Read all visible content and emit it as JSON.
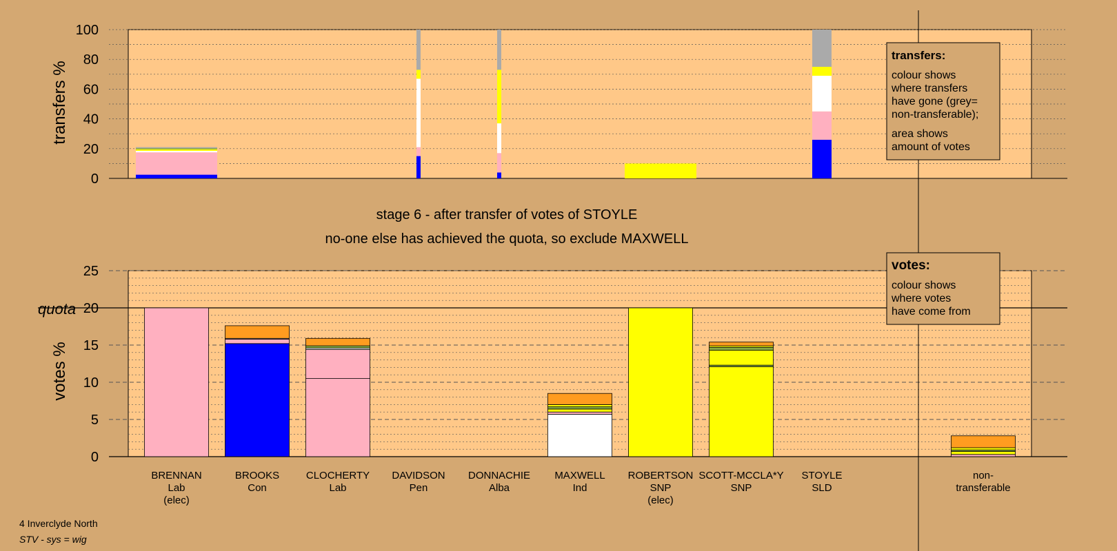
{
  "footer": {
    "line1": "4 Inverclyde North",
    "line2": "STV - sys = wig"
  },
  "stage_title": "stage 6 - after transfer of votes of STOYLE",
  "stage_note": "no-one else has achieved the quota, so exclude MAXWELL",
  "colors": {
    "Lab": "#ffb0c0",
    "Con": "#0000ff",
    "SNP": "#ffff00",
    "Ind": "#ffffff",
    "Orange": "#ff9c20",
    "Green": "#88aa44",
    "Grey": "#aaaaaa",
    "Plot": "#ffc888",
    "Background": "#d4a872"
  },
  "chart_data": [
    {
      "id": "transfers",
      "type": "bar",
      "ylabel": "transfers %",
      "ylim": [
        0,
        100
      ],
      "yticks": [
        0,
        20,
        40,
        60,
        80,
        100
      ],
      "legend": {
        "title": "transfers:",
        "lines": [
          "colour shows",
          "where transfers",
          "have gone (grey=",
          "non-transferable);",
          "area shows",
          "amount of votes"
        ]
      },
      "bars": [
        {
          "candidate": "BRENNAN",
          "segments": [
            {
              "party": "Con",
              "value": 2.5
            },
            {
              "party": "Lab",
              "value": 15
            },
            {
              "party": "Ind",
              "value": 1
            },
            {
              "party": "SNP",
              "value": 1
            },
            {
              "party": "Green",
              "value": 0.8
            },
            {
              "party": "Grey",
              "value": 0.7
            }
          ]
        },
        {
          "candidate": "DAVIDSON",
          "segments": [
            {
              "party": "Con",
              "value": 15
            },
            {
              "party": "Lab",
              "value": 6
            },
            {
              "party": "Ind",
              "value": 46
            },
            {
              "party": "SNP",
              "value": 6
            },
            {
              "party": "Grey",
              "value": 27
            }
          ]
        },
        {
          "candidate": "DONNACHIE",
          "segments": [
            {
              "party": "Con",
              "value": 4
            },
            {
              "party": "Lab",
              "value": 13
            },
            {
              "party": "Ind",
              "value": 20
            },
            {
              "party": "SNP",
              "value": 36
            },
            {
              "party": "Grey",
              "value": 27
            }
          ]
        },
        {
          "candidate": "ROBERTSON",
          "segments": [
            {
              "party": "SNP",
              "value": 10
            }
          ]
        },
        {
          "candidate": "STOYLE",
          "segments": [
            {
              "party": "Con",
              "value": 26
            },
            {
              "party": "Lab",
              "value": 19
            },
            {
              "party": "Ind",
              "value": 24
            },
            {
              "party": "SNP",
              "value": 6
            },
            {
              "party": "Grey",
              "value": 25
            }
          ]
        }
      ]
    },
    {
      "id": "votes",
      "type": "bar",
      "ylabel": "votes %",
      "ylim": [
        0,
        25
      ],
      "yticks": [
        0,
        5,
        10,
        15,
        20,
        25
      ],
      "quota": 20,
      "quota_label": "quota",
      "legend": {
        "title": "votes:",
        "lines": [
          "colour shows",
          "where votes",
          "have come from"
        ]
      },
      "categories": [
        {
          "name": "BRENNAN",
          "party": "Lab",
          "note": "(elec)"
        },
        {
          "name": "BROOKS",
          "party": "Con"
        },
        {
          "name": "CLOCHERTY",
          "party": "Lab"
        },
        {
          "name": "DAVIDSON",
          "party": "Pen"
        },
        {
          "name": "DONNACHIE",
          "party": "Alba"
        },
        {
          "name": "MAXWELL",
          "party": "Ind"
        },
        {
          "name": "ROBERTSON",
          "party": "SNP",
          "note": "(elec)"
        },
        {
          "name": "SCOTT-MCCLA*Y",
          "party": "SNP"
        },
        {
          "name": "STOYLE",
          "party": "SLD"
        },
        {
          "name": "non-",
          "party": "transferable"
        }
      ],
      "bars": [
        {
          "candidate": "BRENNAN",
          "segments": [
            {
              "party": "Lab",
              "value": 20
            }
          ]
        },
        {
          "candidate": "BROOKS",
          "segments": [
            {
              "party": "Con",
              "value": 15.2
            },
            {
              "party": "Lab",
              "value": 0.6
            },
            {
              "party": "Ind",
              "value": 0.1
            },
            {
              "party": "Orange",
              "value": 1.7
            }
          ]
        },
        {
          "candidate": "CLOCHERTY",
          "segments": [
            {
              "party": "Lab",
              "value": 10.5
            },
            {
              "party": "Lab",
              "value": 3.9
            },
            {
              "party": "Ind",
              "value": 0.2
            },
            {
              "party": "Green",
              "value": 0.3
            },
            {
              "party": "Orange",
              "value": 1.0
            }
          ]
        },
        {
          "candidate": "DAVIDSON",
          "segments": []
        },
        {
          "candidate": "DONNACHIE",
          "segments": []
        },
        {
          "candidate": "MAXWELL",
          "segments": [
            {
              "party": "Ind",
              "value": 5.7
            },
            {
              "party": "Lab",
              "value": 0.3
            },
            {
              "party": "SNP",
              "value": 0.4
            },
            {
              "party": "Green",
              "value": 0.3
            },
            {
              "party": "SNP",
              "value": 0.3
            },
            {
              "party": "Orange",
              "value": 1.5
            }
          ]
        },
        {
          "candidate": "ROBERTSON",
          "segments": [
            {
              "party": "SNP",
              "value": 20
            }
          ]
        },
        {
          "candidate": "SCOTT-MCCLA*Y",
          "segments": [
            {
              "party": "SNP",
              "value": 12.1
            },
            {
              "party": "Green",
              "value": 0.2
            },
            {
              "party": "SNP",
              "value": 2.0
            },
            {
              "party": "Green",
              "value": 0.4
            },
            {
              "party": "SNP",
              "value": 0.2
            },
            {
              "party": "Orange",
              "value": 0.5
            }
          ]
        },
        {
          "candidate": "STOYLE",
          "segments": []
        },
        {
          "candidate": "non-",
          "segments": [
            {
              "party": "Lab",
              "value": 0.3
            },
            {
              "party": "SNP",
              "value": 0.4
            },
            {
              "party": "Green",
              "value": 0.2
            },
            {
              "party": "SNP",
              "value": 0.3
            },
            {
              "party": "Orange",
              "value": 1.6
            }
          ]
        }
      ]
    }
  ]
}
